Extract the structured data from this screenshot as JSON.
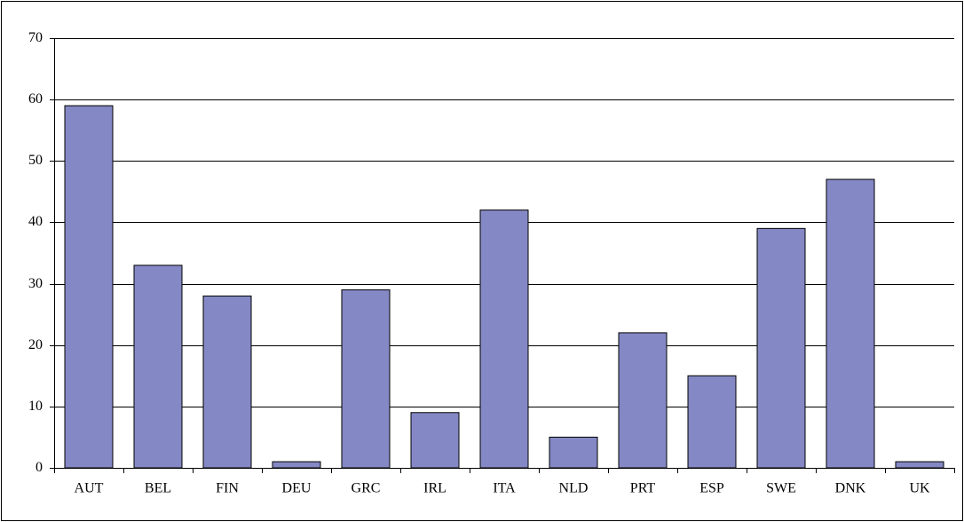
{
  "chart_data": {
    "type": "bar",
    "categories": [
      "AUT",
      "BEL",
      "FIN",
      "DEU",
      "GRC",
      "IRL",
      "ITA",
      "NLD",
      "PRT",
      "ESP",
      "SWE",
      "DNK",
      "UK"
    ],
    "values": [
      59,
      33,
      28,
      1,
      29,
      9,
      42,
      5,
      22,
      15,
      39,
      47,
      1
    ],
    "color": "#8488c4",
    "ylim": [
      0,
      70
    ],
    "yticks": [
      0,
      10,
      20,
      30,
      40,
      50,
      60,
      70
    ],
    "grid": true
  }
}
